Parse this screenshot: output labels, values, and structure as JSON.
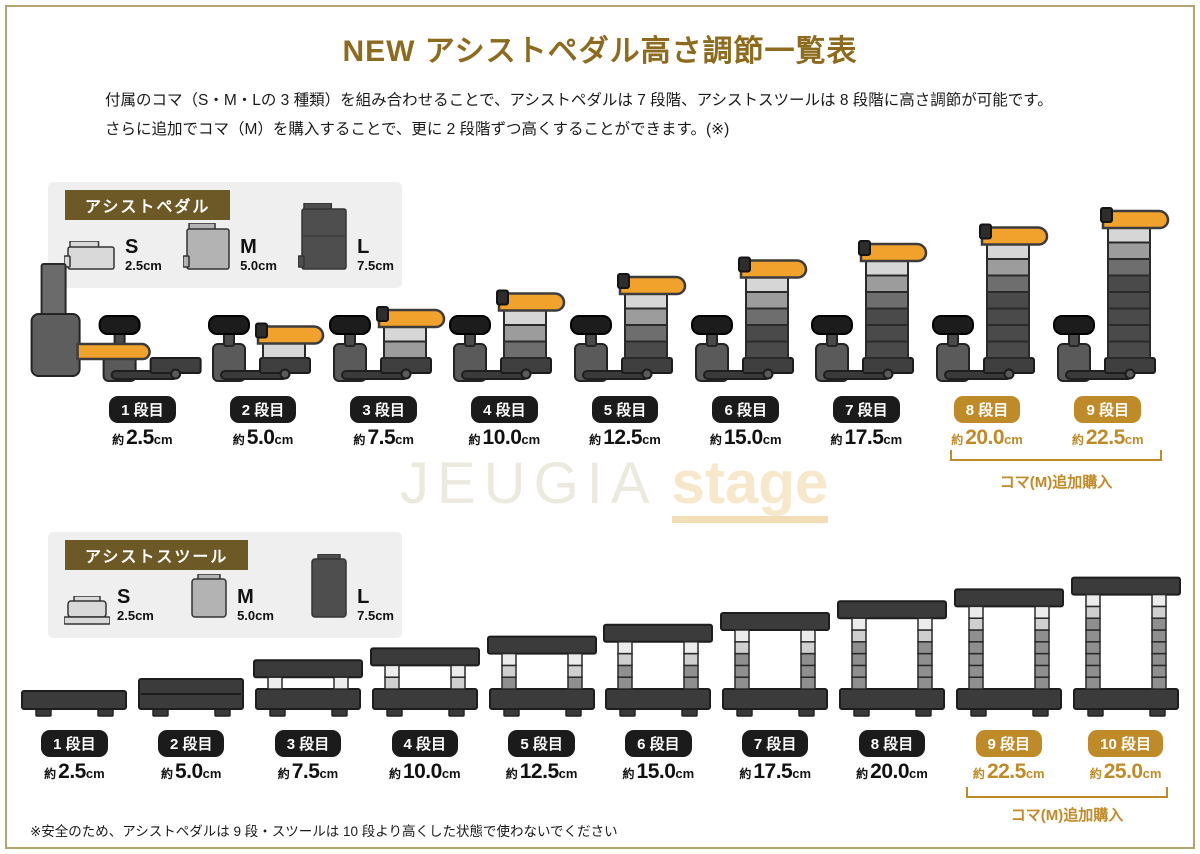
{
  "title": "NEW アシストペダル高さ調節一覧表",
  "intro": {
    "line1": "付属のコマ（S・M・Lの 3 種類）を組み合わせることで、アシストペダルは 7 段階、アシストスツールは 8 段階に高さ調節が可能です。",
    "line2": "さらに追加でコマ（M）を購入することで、更に 2 段階ずつ高くすることができます。(※)"
  },
  "watermark": {
    "brand": "JEUGIA",
    "sub": "stage"
  },
  "pedal_section": {
    "legend_title": "アシストペダル",
    "koma": [
      {
        "label": "S",
        "size": "2.5cm"
      },
      {
        "label": "M",
        "size": "5.0cm"
      },
      {
        "label": "L",
        "size": "7.5cm"
      }
    ],
    "steps": [
      {
        "label": "1 段目",
        "prefix": "約",
        "value": "2.5",
        "unit": "cm",
        "highlight": false
      },
      {
        "label": "2 段目",
        "prefix": "約",
        "value": "5.0",
        "unit": "cm",
        "highlight": false
      },
      {
        "label": "3 段目",
        "prefix": "約",
        "value": "7.5",
        "unit": "cm",
        "highlight": false
      },
      {
        "label": "4 段目",
        "prefix": "約",
        "value": "10.0",
        "unit": "cm",
        "highlight": false
      },
      {
        "label": "5 段目",
        "prefix": "約",
        "value": "12.5",
        "unit": "cm",
        "highlight": false
      },
      {
        "label": "6 段目",
        "prefix": "約",
        "value": "15.0",
        "unit": "cm",
        "highlight": false
      },
      {
        "label": "7 段目",
        "prefix": "約",
        "value": "17.5",
        "unit": "cm",
        "highlight": false
      },
      {
        "label": "8 段目",
        "prefix": "約",
        "value": "20.0",
        "unit": "cm",
        "highlight": true
      },
      {
        "label": "9 段目",
        "prefix": "約",
        "value": "22.5",
        "unit": "cm",
        "highlight": true
      }
    ],
    "addon_note": "コマ(M)追加購入"
  },
  "stool_section": {
    "legend_title": "アシストスツール",
    "koma": [
      {
        "label": "S",
        "size": "2.5cm"
      },
      {
        "label": "M",
        "size": "5.0cm"
      },
      {
        "label": "L",
        "size": "7.5cm"
      }
    ],
    "steps": [
      {
        "label": "1 段目",
        "prefix": "約",
        "value": "2.5",
        "unit": "cm",
        "highlight": false
      },
      {
        "label": "2 段目",
        "prefix": "約",
        "value": "5.0",
        "unit": "cm",
        "highlight": false
      },
      {
        "label": "3 段目",
        "prefix": "約",
        "value": "7.5",
        "unit": "cm",
        "highlight": false
      },
      {
        "label": "4 段目",
        "prefix": "約",
        "value": "10.0",
        "unit": "cm",
        "highlight": false
      },
      {
        "label": "5 段目",
        "prefix": "約",
        "value": "12.5",
        "unit": "cm",
        "highlight": false
      },
      {
        "label": "6 段目",
        "prefix": "約",
        "value": "15.0",
        "unit": "cm",
        "highlight": false
      },
      {
        "label": "7 段目",
        "prefix": "約",
        "value": "17.5",
        "unit": "cm",
        "highlight": false
      },
      {
        "label": "8 段目",
        "prefix": "約",
        "value": "20.0",
        "unit": "cm",
        "highlight": false
      },
      {
        "label": "9 段目",
        "prefix": "約",
        "value": "22.5",
        "unit": "cm",
        "highlight": true
      },
      {
        "label": "10 段目",
        "prefix": "約",
        "value": "25.0",
        "unit": "cm",
        "highlight": true
      }
    ],
    "addon_note": "コマ(M)追加購入"
  },
  "footnote": "※安全のため、アシストペダルは 9 段・スツールは 10 段より高くした状態で使わないでください",
  "colors": {
    "gold": "#bf8b28",
    "title_gold": "#8d6b1e",
    "badge_black": "#1b1b1b",
    "legend_brown": "#6d5926",
    "frame_gold": "#b3a470",
    "lever_orange": "#f1a22c",
    "koma_light": "#d9d9d9",
    "koma_mid": "#b3b3b3",
    "koma_dark": "#4e4e4e"
  }
}
